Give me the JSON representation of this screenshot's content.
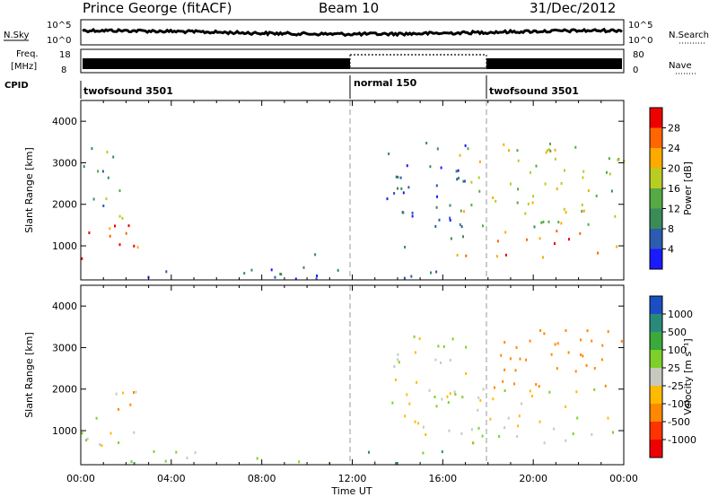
{
  "header": {
    "station": "Prince George (fitACF)",
    "beam": "Beam 10",
    "date": "31/Dec/2012"
  },
  "strip_labels": {
    "nsky": "N.Sky",
    "freq_line1": "Freq.",
    "freq_line2": "[MHz]",
    "cpid": "CPID",
    "nsearch": "N.Search",
    "nave": "Nave",
    "nsky_top": "10^5",
    "nsky_bottom": "10^0",
    "nsearch_top": "10^5",
    "nsearch_bottom": "10^0",
    "freq_top": "18",
    "freq_bottom": "8",
    "nave_top": "80",
    "nave_bottom": "0"
  },
  "cpid_segments": [
    {
      "label": "twofsound 3501",
      "start_hour": 0
    },
    {
      "label": "normal 150",
      "start_hour": 12
    },
    {
      "label": "twofsound 3501",
      "start_hour": 18
    }
  ],
  "x_axis": {
    "label": "Time UT",
    "ticks": [
      "00:00",
      "04:00",
      "08:00",
      "12:00",
      "16:00",
      "20:00",
      "00:00"
    ]
  },
  "panels": {
    "power": {
      "ylabel": "Slant Range [km]",
      "yticks": [
        "1000",
        "2000",
        "3000",
        "4000"
      ],
      "colorbar_label": "Power [dB]",
      "colorbar_ticks": [
        "4",
        "8",
        "12",
        "16",
        "20",
        "24",
        "28"
      ],
      "colors": [
        "#1a1aff",
        "#2b5cb0",
        "#3a8a5a",
        "#55aa44",
        "#b8cc22",
        "#ffaa00",
        "#ff6600",
        "#ee0000"
      ]
    },
    "velocity": {
      "ylabel": "Slant Range [km]",
      "yticks": [
        "1000",
        "2000",
        "3000",
        "4000"
      ],
      "colorbar_label": "Velocity [m s⁻¹]",
      "colorbar_ticks": [
        "1000",
        "500",
        "100",
        "25",
        "-25",
        "-100",
        "-500",
        "-1000"
      ],
      "colors": [
        "#1a4fc4",
        "#2a8a7a",
        "#3aaa3a",
        "#7ecf2a",
        "#c8c8c0",
        "#ffbb00",
        "#ff8800",
        "#ff3300",
        "#ee0000"
      ]
    }
  },
  "chart_data": [
    {
      "type": "heatmap",
      "title": "Prince George (fitACF) Beam 10 31/Dec/2012",
      "xlabel": "Time UT",
      "ylabel": "Slant Range [km]",
      "xlim_hours": [
        0,
        24
      ],
      "ylim_km": [
        180,
        4500
      ],
      "colorbar": "Power [dB]",
      "clim": [
        0,
        30
      ],
      "regions": [
        {
          "t": [
            0.0,
            2.5
          ],
          "range_km": [
            600,
            1500
          ],
          "level_db": 26
        },
        {
          "t": [
            0.0,
            2.0
          ],
          "range_km": [
            1500,
            3500
          ],
          "level_db": 12
        },
        {
          "t": [
            2.0,
            16.0
          ],
          "range_km": [
            200,
            500
          ],
          "level_db": 6
        },
        {
          "t": [
            9.0,
            12.0
          ],
          "range_km": [
            750,
            880
          ],
          "level_db": 5
        },
        {
          "t": [
            13.5,
            17.0
          ],
          "range_km": [
            900,
            3500
          ],
          "level_db": 6
        },
        {
          "t": [
            16.5,
            24.0
          ],
          "range_km": [
            700,
            1400
          ],
          "level_db": 24
        },
        {
          "t": [
            16.5,
            24.0
          ],
          "range_km": [
            1400,
            3500
          ],
          "level_db": 16
        }
      ]
    },
    {
      "type": "heatmap",
      "title": "",
      "xlabel": "Time UT",
      "ylabel": "Slant Range [km]",
      "xlim_hours": [
        0,
        24
      ],
      "ylim_km": [
        180,
        4500
      ],
      "colorbar": "Velocity [m s⁻¹]",
      "clim": [
        -1000,
        1000
      ],
      "regions": [
        {
          "t": [
            0.0,
            2.5
          ],
          "range_km": [
            600,
            2000
          ],
          "velocity_ms": 0
        },
        {
          "t": [
            1.0,
            2.5
          ],
          "range_km": [
            1000,
            2000
          ],
          "velocity_ms": -120
        },
        {
          "t": [
            2.0,
            16.0
          ],
          "range_km": [
            200,
            500
          ],
          "velocity_ms": 60
        },
        {
          "t": [
            13.5,
            17.0
          ],
          "range_km": [
            900,
            3500
          ],
          "velocity_ms": 0
        },
        {
          "t": [
            16.5,
            24.0
          ],
          "range_km": [
            700,
            2000
          ],
          "velocity_ms": 0
        },
        {
          "t": [
            18.0,
            24.0
          ],
          "range_km": [
            2000,
            3500
          ],
          "velocity_ms": -200
        }
      ]
    }
  ]
}
